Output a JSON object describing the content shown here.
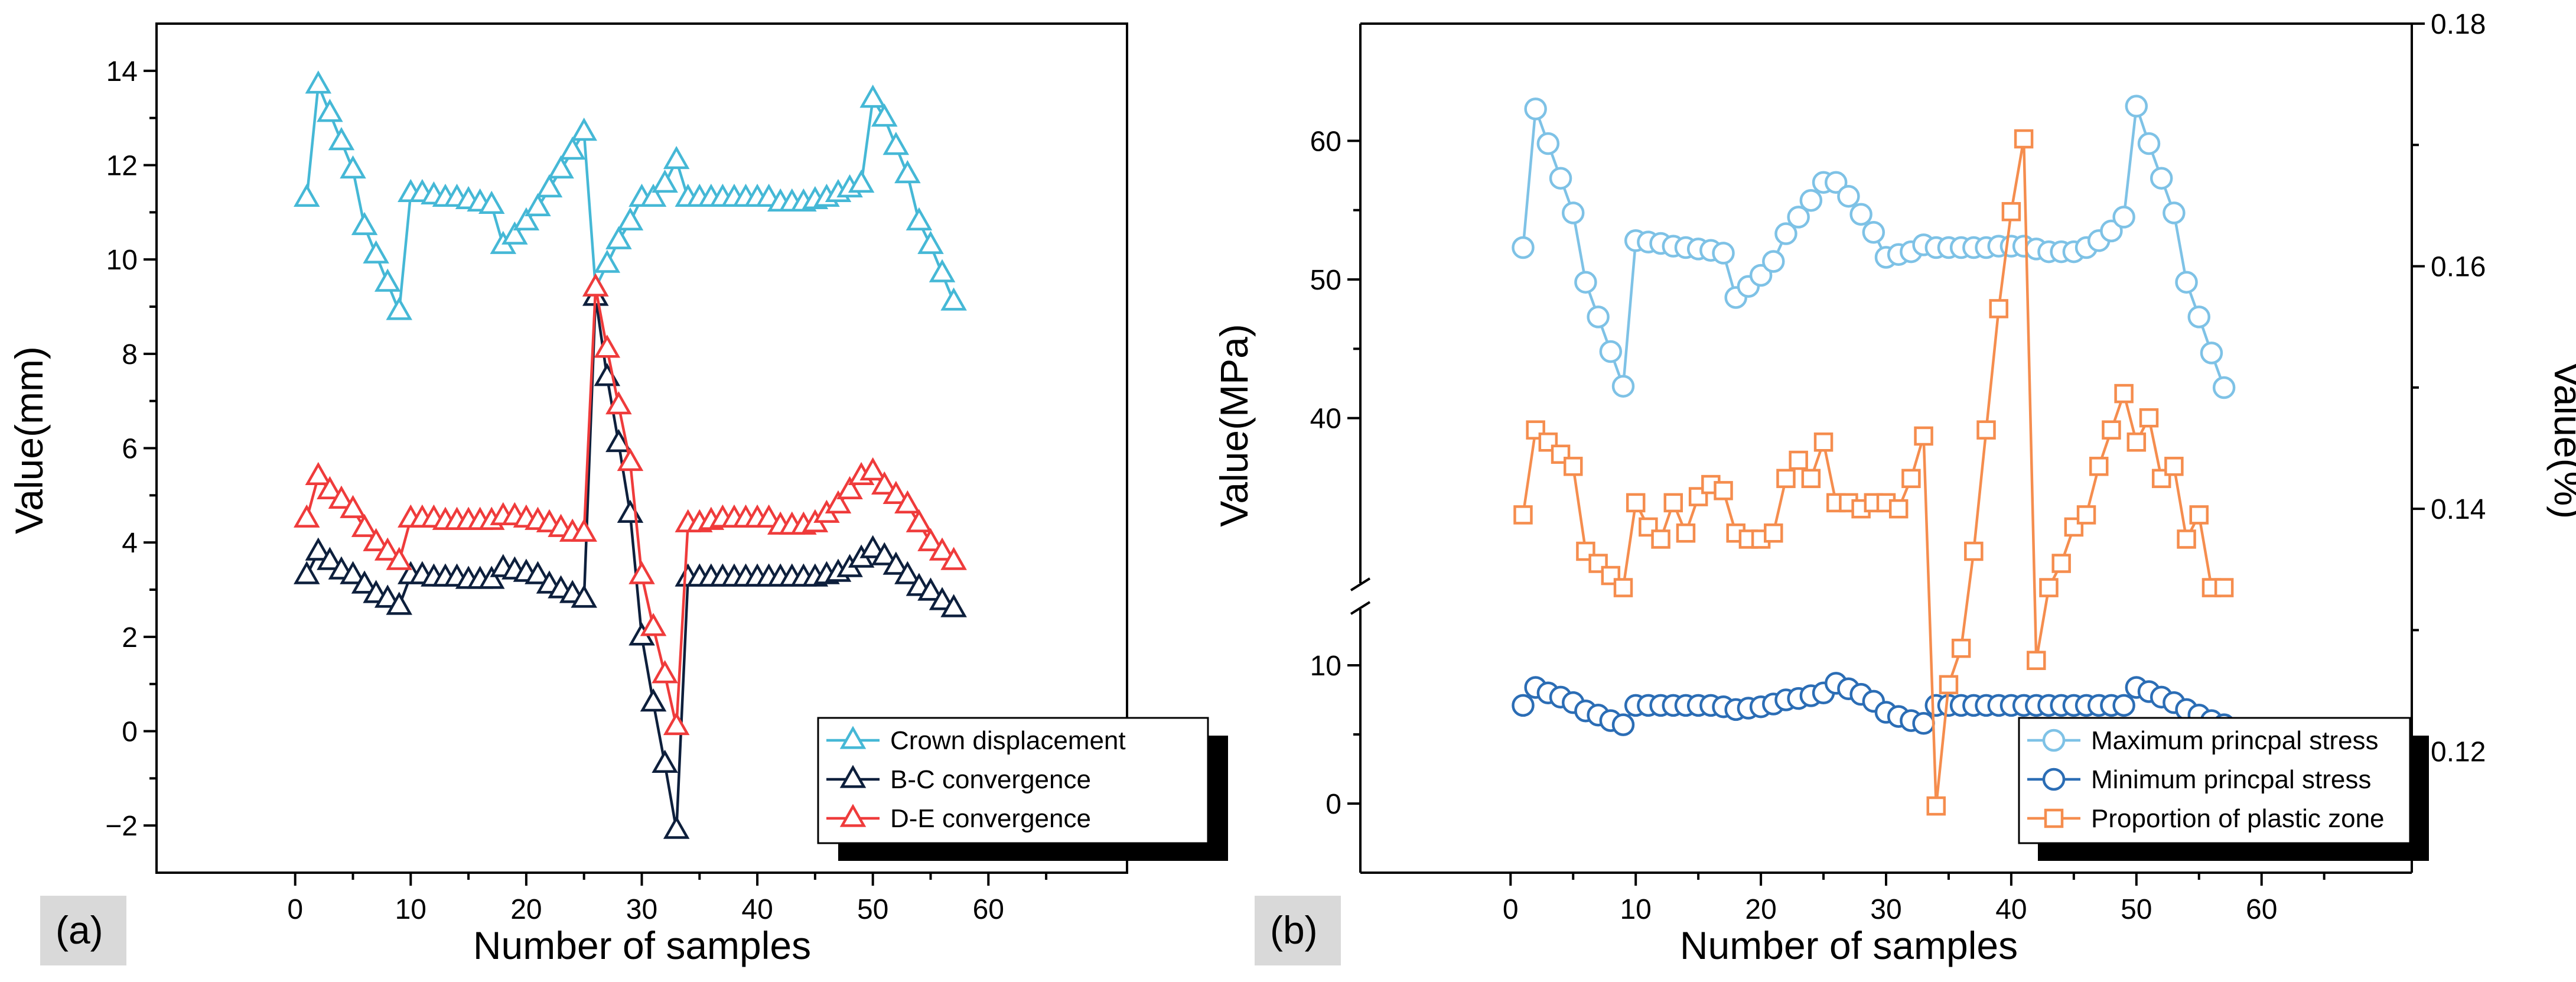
{
  "chart_data": [
    {
      "type": "line",
      "panel_label": "(a)",
      "xlabel": "Number of samples",
      "ylabel": "Value(mm)",
      "xlim": [
        -12,
        72
      ],
      "ylim": [
        -3,
        15
      ],
      "xticks": [
        0,
        10,
        20,
        30,
        40,
        50,
        60
      ],
      "yticks": [
        -2,
        0,
        2,
        4,
        6,
        8,
        10,
        12,
        14
      ],
      "x": [
        1,
        2,
        3,
        4,
        5,
        6,
        7,
        8,
        9,
        10,
        11,
        12,
        13,
        14,
        15,
        16,
        17,
        18,
        19,
        20,
        21,
        22,
        23,
        24,
        25,
        26,
        27,
        28,
        29,
        30,
        31,
        32,
        33,
        34,
        35,
        36,
        37,
        38,
        39,
        40,
        41,
        42,
        43,
        44,
        45,
        46,
        47,
        48,
        49,
        50,
        51,
        52,
        53,
        54,
        55,
        56,
        57
      ],
      "legend_position": "bottom-right",
      "series": [
        {
          "name": "Crown displacement",
          "color": "#45B8D6",
          "marker": "triangle",
          "values": [
            11.3,
            13.7,
            13.1,
            12.5,
            11.9,
            10.7,
            10.1,
            9.5,
            8.9,
            11.4,
            11.4,
            11.35,
            11.3,
            11.3,
            11.25,
            11.2,
            11.15,
            10.3,
            10.5,
            10.8,
            11.1,
            11.5,
            11.9,
            12.3,
            12.7,
            9.4,
            9.9,
            10.4,
            10.8,
            11.3,
            11.3,
            11.6,
            12.1,
            11.3,
            11.3,
            11.3,
            11.3,
            11.3,
            11.3,
            11.3,
            11.3,
            11.2,
            11.2,
            11.2,
            11.25,
            11.3,
            11.4,
            11.5,
            11.6,
            13.4,
            13.0,
            12.4,
            11.8,
            10.8,
            10.3,
            9.7,
            9.1
          ]
        },
        {
          "name": "B-C convergence",
          "color": "#0D1F3C",
          "marker": "triangle",
          "values": [
            3.3,
            3.8,
            3.6,
            3.4,
            3.3,
            3.1,
            2.9,
            2.8,
            2.65,
            3.3,
            3.3,
            3.25,
            3.25,
            3.25,
            3.2,
            3.2,
            3.2,
            3.45,
            3.4,
            3.35,
            3.3,
            3.1,
            3.0,
            2.9,
            2.8,
            9.2,
            7.5,
            6.1,
            4.6,
            2.0,
            0.6,
            -0.7,
            -2.1,
            3.25,
            3.25,
            3.25,
            3.25,
            3.25,
            3.25,
            3.25,
            3.25,
            3.25,
            3.25,
            3.25,
            3.25,
            3.3,
            3.35,
            3.45,
            3.65,
            3.85,
            3.7,
            3.5,
            3.3,
            3.05,
            2.95,
            2.75,
            2.6
          ]
        },
        {
          "name": "D-E convergence",
          "color": "#EF3B3B",
          "marker": "triangle",
          "values": [
            4.5,
            5.4,
            5.1,
            4.9,
            4.7,
            4.3,
            4.0,
            3.8,
            3.6,
            4.5,
            4.5,
            4.5,
            4.45,
            4.45,
            4.45,
            4.45,
            4.45,
            4.55,
            4.55,
            4.5,
            4.45,
            4.4,
            4.3,
            4.2,
            4.2,
            9.4,
            8.1,
            6.9,
            5.7,
            3.3,
            2.2,
            1.2,
            0.1,
            4.4,
            4.4,
            4.45,
            4.5,
            4.5,
            4.5,
            4.5,
            4.5,
            4.35,
            4.35,
            4.35,
            4.4,
            4.6,
            4.8,
            5.1,
            5.4,
            5.5,
            5.2,
            5.0,
            4.8,
            4.4,
            4.0,
            3.8,
            3.6
          ]
        }
      ]
    },
    {
      "type": "line",
      "panel_label": "(b)",
      "xlabel": "Number of samples",
      "ylabel": "Value(MPa)",
      "y2label": "Value(%)",
      "xlim": [
        -12,
        72
      ],
      "ylim_broken": {
        "lower": [
          -5,
          15
        ],
        "upper": [
          35,
          65
        ]
      },
      "y2lim": [
        0.11,
        0.18
      ],
      "xticks": [
        0,
        10,
        20,
        30,
        40,
        50,
        60
      ],
      "yticks": [
        0,
        10,
        40,
        50,
        60
      ],
      "y2ticks": [
        0.12,
        0.14,
        0.16,
        0.18
      ],
      "x": [
        1,
        2,
        3,
        4,
        5,
        6,
        7,
        8,
        9,
        10,
        11,
        12,
        13,
        14,
        15,
        16,
        17,
        18,
        19,
        20,
        21,
        22,
        23,
        24,
        25,
        26,
        27,
        28,
        29,
        30,
        31,
        32,
        33,
        34,
        35,
        36,
        37,
        38,
        39,
        40,
        41,
        42,
        43,
        44,
        45,
        46,
        47,
        48,
        49,
        50,
        51,
        52,
        53,
        54,
        55,
        56,
        57
      ],
      "legend_position": "bottom-right",
      "series": [
        {
          "name": "Maximum princpal stress",
          "color": "#7EC2E6",
          "marker": "circle",
          "axis": "left",
          "values": [
            52.3,
            62.3,
            59.8,
            57.3,
            54.8,
            49.8,
            47.3,
            44.8,
            42.3,
            52.8,
            52.7,
            52.6,
            52.4,
            52.3,
            52.2,
            52.1,
            51.9,
            48.7,
            49.5,
            50.3,
            51.3,
            53.3,
            54.5,
            55.7,
            57.0,
            57.0,
            56.0,
            54.7,
            53.4,
            51.6,
            51.8,
            52.0,
            52.5,
            52.3,
            52.3,
            52.3,
            52.3,
            52.3,
            52.4,
            52.4,
            52.4,
            52.2,
            52.0,
            52.0,
            52.0,
            52.3,
            52.8,
            53.5,
            54.5,
            62.5,
            59.8,
            57.3,
            54.8,
            49.8,
            47.3,
            44.7,
            42.2
          ]
        },
        {
          "name": "Minimum princpal stress",
          "color": "#2B6DB5",
          "marker": "circle",
          "axis": "left",
          "values": [
            7.1,
            8.4,
            8.0,
            7.7,
            7.3,
            6.7,
            6.4,
            6.0,
            5.7,
            7.1,
            7.1,
            7.1,
            7.1,
            7.1,
            7.1,
            7.1,
            7.0,
            6.8,
            6.9,
            7.0,
            7.2,
            7.5,
            7.6,
            7.8,
            8.0,
            8.7,
            8.3,
            7.9,
            7.4,
            6.6,
            6.3,
            6.0,
            5.8,
            7.1,
            7.1,
            7.1,
            7.1,
            7.1,
            7.1,
            7.1,
            7.1,
            7.1,
            7.1,
            7.1,
            7.1,
            7.1,
            7.1,
            7.1,
            7.1,
            8.4,
            8.1,
            7.7,
            7.3,
            6.8,
            6.4,
            6.0,
            5.7
          ]
        },
        {
          "name": "Proportion of plastic zone",
          "color": "#F58D4E",
          "marker": "square",
          "axis": "right",
          "values": [
            0.1395,
            0.1465,
            0.1455,
            0.1445,
            0.1435,
            0.1365,
            0.1355,
            0.1345,
            0.1335,
            0.1405,
            0.1385,
            0.1375,
            0.1405,
            0.138,
            0.141,
            0.142,
            0.1415,
            0.138,
            0.1375,
            0.1375,
            0.138,
            0.1425,
            0.144,
            0.1425,
            0.1455,
            0.1405,
            0.1405,
            0.14,
            0.1405,
            0.1405,
            0.14,
            0.1425,
            0.146,
            0.1155,
            0.1255,
            0.1285,
            0.1365,
            0.1465,
            0.1565,
            0.1645,
            0.1705,
            0.1275,
            0.1335,
            0.1355,
            0.1385,
            0.1395,
            0.1435,
            0.1465,
            0.1495,
            0.1455,
            0.1475,
            0.1425,
            0.1435,
            0.1375,
            0.1395,
            0.1335,
            0.1335
          ]
        }
      ]
    }
  ]
}
